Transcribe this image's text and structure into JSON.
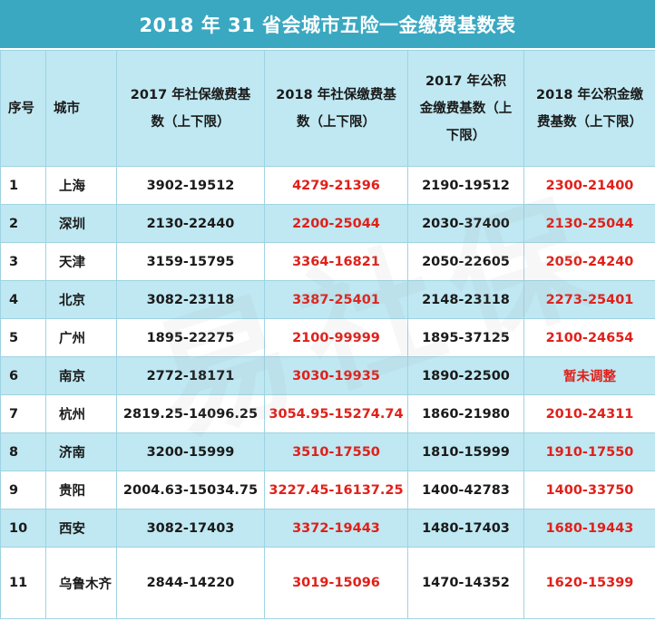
{
  "title": "2018 年 31 省会城市五险一金缴费基数表",
  "columns": [
    "序号",
    "城市",
    "2017 年社保缴费基数（上下限）",
    "2018 年社保缴费基数（上下限）",
    "2017 年公积金缴费基数（上下限）",
    "2018 年公积金缴费基数（上下限）"
  ],
  "rows": [
    {
      "idx": "1",
      "city": "上海",
      "ss2017": "3902-19512",
      "ss2018": "4279-21396",
      "hf2017": "2190-19512",
      "hf2018": "2300-21400"
    },
    {
      "idx": "2",
      "city": "深圳",
      "ss2017": "2130-22440",
      "ss2018": "2200-25044",
      "hf2017": "2030-37400",
      "hf2018": "2130-25044"
    },
    {
      "idx": "3",
      "city": "天津",
      "ss2017": "3159-15795",
      "ss2018": "3364-16821",
      "hf2017": "2050-22605",
      "hf2018": "2050-24240"
    },
    {
      "idx": "4",
      "city": "北京",
      "ss2017": "3082-23118",
      "ss2018": "3387-25401",
      "hf2017": "2148-23118",
      "hf2018": "2273-25401"
    },
    {
      "idx": "5",
      "city": "广州",
      "ss2017": "1895-22275",
      "ss2018": "2100-99999",
      "hf2017": "1895-37125",
      "hf2018": "2100-24654"
    },
    {
      "idx": "6",
      "city": "南京",
      "ss2017": "2772-18171",
      "ss2018": "3030-19935",
      "hf2017": "1890-22500",
      "hf2018": "暂未调整"
    },
    {
      "idx": "7",
      "city": "杭州",
      "ss2017": "2819.25-14096.25",
      "ss2018": "3054.95-15274.74",
      "hf2017": "1860-21980",
      "hf2018": "2010-24311"
    },
    {
      "idx": "8",
      "city": "济南",
      "ss2017": "3200-15999",
      "ss2018": "3510-17550",
      "hf2017": "1810-15999",
      "hf2018": "1910-17550"
    },
    {
      "idx": "9",
      "city": "贵阳",
      "ss2017": "2004.63-15034.75",
      "ss2018": "3227.45-16137.25",
      "hf2017": "1400-42783",
      "hf2018": "1400-33750"
    },
    {
      "idx": "10",
      "city": "西安",
      "ss2017": "3082-17403",
      "ss2018": "3372-19443",
      "hf2017": "1480-17403",
      "hf2018": "1680-19443"
    },
    {
      "idx": "11",
      "city": "乌鲁木齐",
      "ss2017": "2844-14220",
      "ss2018": "3019-15096",
      "hf2017": "1470-14352",
      "hf2018": "1620-15399"
    }
  ],
  "colors": {
    "title_bg": "#3aa8c1",
    "band": "#bfe8f2",
    "highlight_text": "#e0201a"
  }
}
